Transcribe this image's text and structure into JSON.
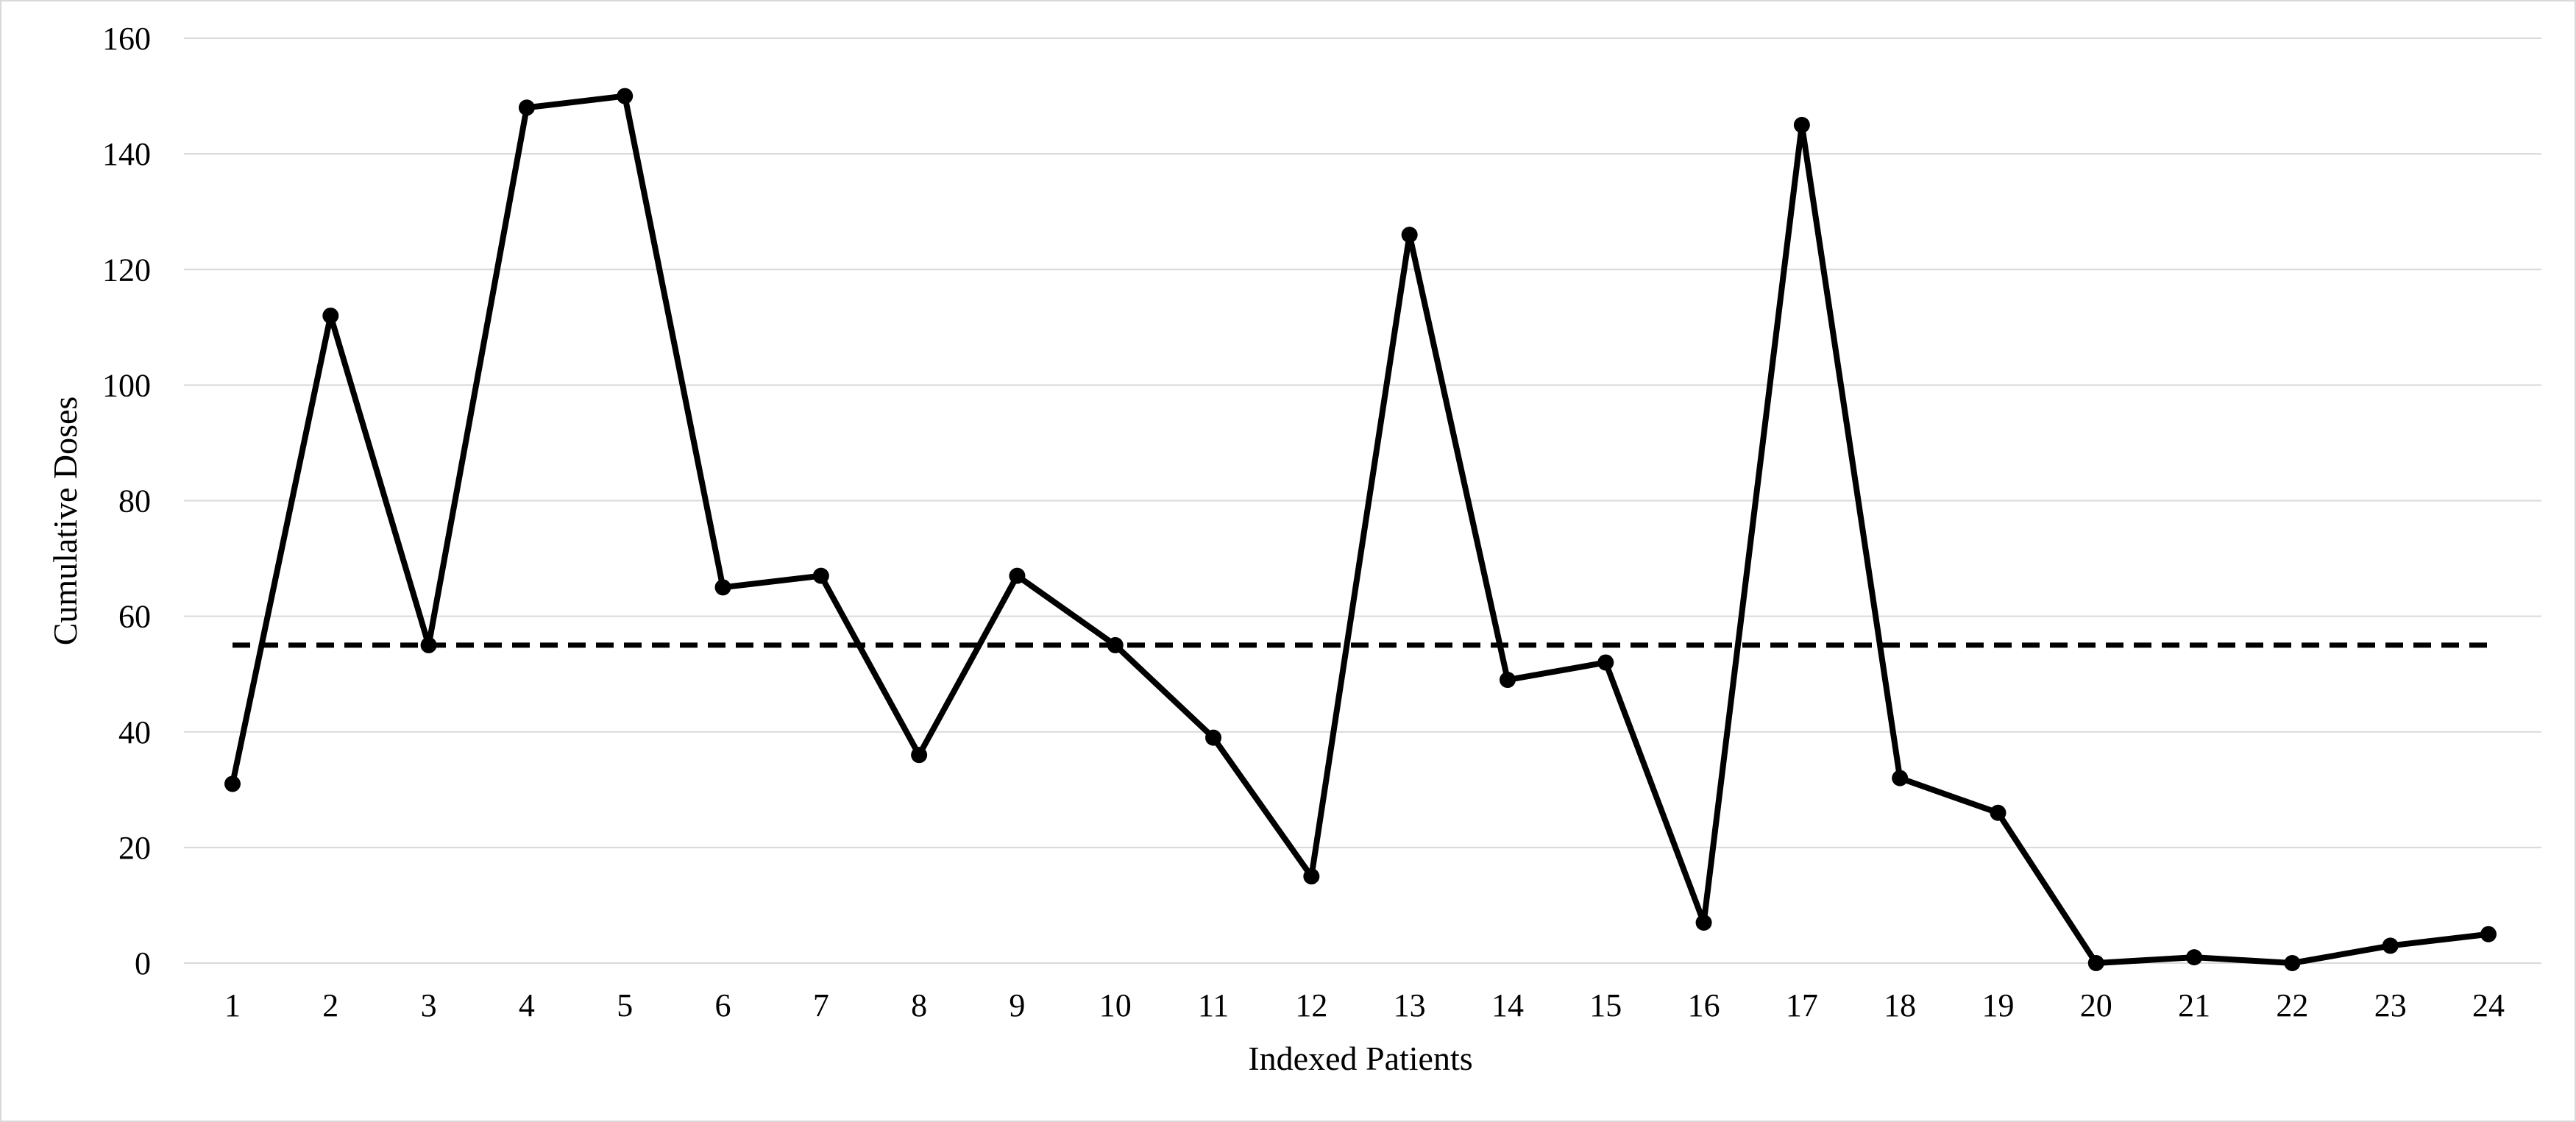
{
  "chart_data": {
    "type": "line",
    "title": "",
    "xlabel": "Indexed Patients",
    "ylabel": "Cumulative Doses",
    "categories": [
      "1",
      "2",
      "3",
      "4",
      "5",
      "6",
      "7",
      "8",
      "9",
      "10",
      "11",
      "12",
      "13",
      "14",
      "15",
      "16",
      "17",
      "18",
      "19",
      "20",
      "21",
      "22",
      "23",
      "24"
    ],
    "series": [
      {
        "values": [
          31,
          112,
          55,
          148,
          150,
          65,
          67,
          36,
          67,
          55,
          39,
          15,
          126,
          49,
          52,
          7,
          145,
          32,
          26,
          0,
          1,
          0,
          3,
          5
        ],
        "color": "#000000",
        "style": "solid",
        "markers": true
      }
    ],
    "reference_line": {
      "value": 55,
      "style": "dashed",
      "color": "#000000"
    },
    "ylim": [
      0,
      160
    ],
    "yticks": [
      0,
      20,
      40,
      60,
      80,
      100,
      120,
      140,
      160
    ],
    "grid": "horizontal",
    "gridline_color": "#d9d9d9",
    "legend": "none"
  }
}
